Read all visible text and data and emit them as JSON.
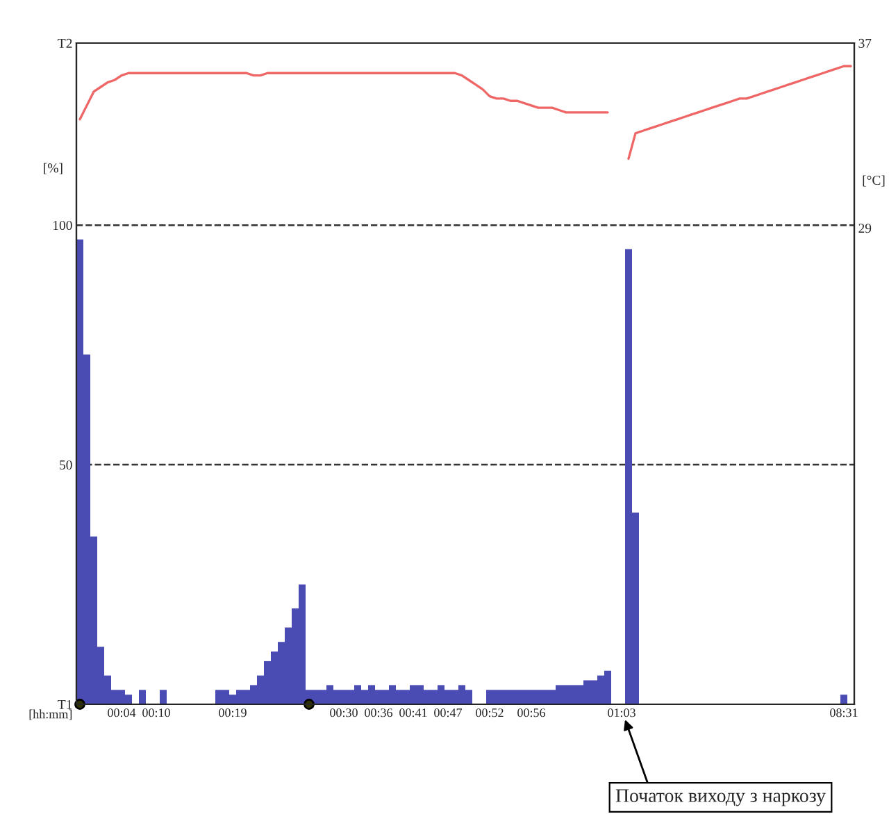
{
  "chart_data": {
    "type": "bar",
    "categories": [
      null,
      null,
      null,
      null,
      null,
      null,
      "00:04",
      null,
      null,
      null,
      null,
      "00:10",
      null,
      null,
      null,
      null,
      null,
      null,
      null,
      null,
      null,
      null,
      "00:19",
      null,
      null,
      null,
      null,
      null,
      null,
      null,
      null,
      null,
      null,
      null,
      null,
      null,
      null,
      null,
      "00:30",
      null,
      null,
      null,
      null,
      "00:36",
      null,
      null,
      null,
      null,
      "00:41",
      null,
      null,
      null,
      null,
      "00:47",
      null,
      null,
      null,
      null,
      null,
      "00:52",
      null,
      null,
      null,
      null,
      null,
      "00:56",
      null,
      null,
      null,
      null,
      null,
      null,
      null,
      null,
      null,
      null,
      null,
      null,
      "01:03",
      null,
      null,
      null,
      null,
      null,
      null,
      null,
      null,
      null,
      null,
      null,
      null,
      null,
      null,
      null,
      null,
      null,
      null,
      null,
      null,
      null,
      null,
      null,
      null,
      null,
      null,
      null,
      null,
      null,
      null,
      null,
      "08:31",
      null
    ],
    "series": [
      {
        "type": "bar",
        "color": "#4b4bb4",
        "values": [
          97,
          73,
          35,
          12,
          6,
          3,
          3,
          2,
          0,
          3,
          0,
          0,
          3,
          0,
          0,
          0,
          0,
          0,
          0,
          0,
          3,
          3,
          2,
          3,
          3,
          4,
          6,
          9,
          11,
          13,
          16,
          20,
          25,
          3,
          3,
          3,
          4,
          3,
          3,
          3,
          4,
          3,
          4,
          3,
          3,
          4,
          3,
          3,
          4,
          4,
          3,
          3,
          4,
          3,
          3,
          4,
          3,
          0,
          0,
          3,
          3,
          3,
          3,
          3,
          3,
          3,
          3,
          3,
          3,
          4,
          4,
          4,
          4,
          5,
          5,
          6,
          7,
          0,
          0,
          95,
          40,
          0,
          0,
          0,
          0,
          0,
          0,
          0,
          0,
          0,
          0,
          0,
          0,
          0,
          0,
          0,
          0,
          0,
          0,
          0,
          0,
          0,
          0,
          0,
          0,
          0,
          0,
          0,
          0,
          0,
          2,
          0
        ]
      },
      {
        "type": "line",
        "axis": "y2",
        "color": "#ee6666",
        "values": [
          33.7,
          34.3,
          34.9,
          35.1,
          35.3,
          35.4,
          35.6,
          35.7,
          35.7,
          35.7,
          35.7,
          35.7,
          35.7,
          35.7,
          35.7,
          35.7,
          35.7,
          35.7,
          35.7,
          35.7,
          35.7,
          35.7,
          35.7,
          35.7,
          35.7,
          35.6,
          35.6,
          35.7,
          35.7,
          35.7,
          35.7,
          35.7,
          35.7,
          35.7,
          35.7,
          35.7,
          35.7,
          35.7,
          35.7,
          35.7,
          35.7,
          35.7,
          35.7,
          35.7,
          35.7,
          35.7,
          35.7,
          35.7,
          35.7,
          35.7,
          35.7,
          35.7,
          35.7,
          35.7,
          35.7,
          35.6,
          35.4,
          35.2,
          35.0,
          34.7,
          34.6,
          34.6,
          34.5,
          34.5,
          34.4,
          34.3,
          34.2,
          34.2,
          34.2,
          34.1,
          34.0,
          34.0,
          34.0,
          34.0,
          34.0,
          34.0,
          34.0,
          null,
          null,
          32.0,
          33.1,
          33.2,
          33.3,
          33.4,
          33.5,
          33.6,
          33.7,
          33.8,
          33.9,
          34.0,
          34.1,
          34.2,
          34.3,
          34.4,
          34.5,
          34.6,
          34.6,
          34.7,
          34.8,
          34.9,
          35.0,
          35.1,
          35.2,
          35.3,
          35.4,
          35.5,
          35.6,
          35.7,
          35.8,
          35.9,
          36.0,
          36.0
        ]
      },
      {
        "type": "scatter",
        "color": "#333300",
        "marker": "circle",
        "values": [
          0,
          null,
          null,
          null,
          null,
          null,
          null,
          null,
          null,
          null,
          null,
          null,
          null,
          null,
          null,
          null,
          null,
          null,
          null,
          null,
          null,
          null,
          null,
          null,
          null,
          null,
          null,
          null,
          null,
          null,
          null,
          null,
          null,
          0,
          null,
          null,
          null,
          null,
          null,
          null,
          null,
          null,
          null,
          null,
          null,
          null,
          null,
          null,
          null,
          null,
          null,
          null,
          null,
          null,
          null,
          null,
          null,
          null,
          null,
          null,
          null,
          null,
          null,
          null,
          null,
          null,
          null,
          null,
          null,
          null,
          null,
          null,
          null,
          null,
          null,
          null,
          null,
          null,
          null,
          null,
          null,
          null,
          null,
          null,
          null,
          null,
          null,
          null,
          null,
          null,
          null,
          null,
          null,
          null,
          null,
          null,
          null,
          null,
          null,
          null,
          null,
          null,
          null,
          null,
          null,
          null,
          null,
          null,
          null,
          null,
          null,
          null
        ]
      }
    ],
    "ylabel": "[%]",
    "y2label": "[°C]",
    "xlabel": "[hh:mm]",
    "ylim": [
      0,
      138
    ],
    "yticks": [
      {
        "value": 0,
        "label": "T1"
      },
      50,
      100,
      {
        "value": 138,
        "label": "T2"
      }
    ],
    "y2lim": [
      8.4,
      37
    ],
    "y2ticks": [
      29,
      37
    ],
    "ref_lines": [
      {
        "axis": "y",
        "value": 50,
        "color": "#333333",
        "line_style": "dashed"
      },
      {
        "axis": "y",
        "value": 100,
        "color": "#333333",
        "line_style": "dashed"
      }
    ],
    "grid": false,
    "legend": false,
    "annotations": [
      "Початок виходу з наркозу"
    ]
  }
}
